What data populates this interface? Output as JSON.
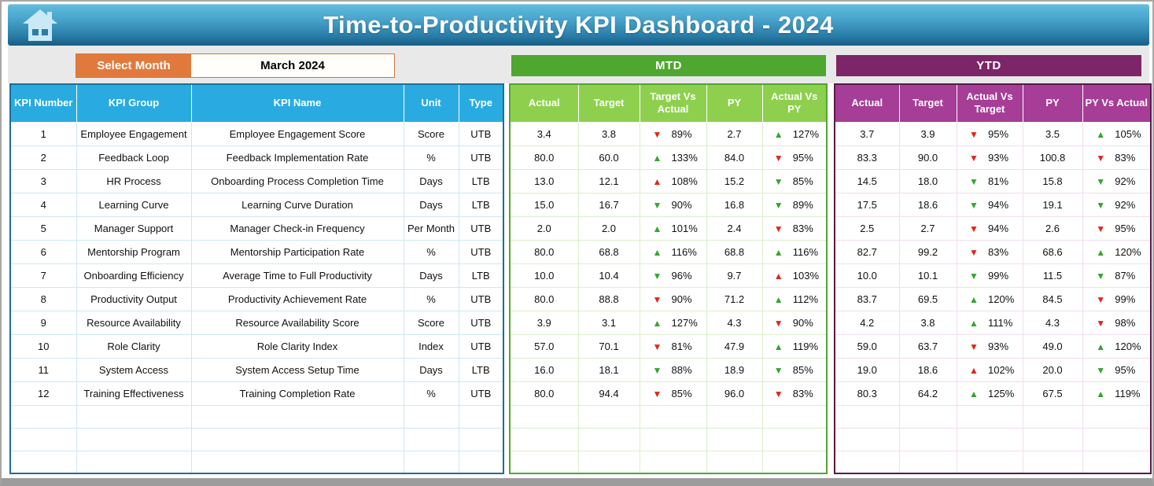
{
  "banner": {
    "title": "Time-to-Productivity KPI Dashboard - 2024"
  },
  "controls": {
    "select_month_label": "Select Month",
    "selected_month": "March 2024"
  },
  "sections": {
    "mtd_label": "MTD",
    "ytd_label": "YTD"
  },
  "colors": {
    "banner_blue_top": "#63bde0",
    "banner_blue_bottom": "#175d84",
    "header_blue": "#29abe2",
    "select_orange": "#e2793c",
    "mtd_band_green": "#4ea72e",
    "mtd_header_green": "#8ed04e",
    "ytd_band_purple": "#7d2569",
    "ytd_header_magenta": "#a63d96",
    "arrow_up_green": "#36a331",
    "arrow_down_red": "#e1251b"
  },
  "table": {
    "info_headers": [
      "KPI Number",
      "KPI Group",
      "KPI Name",
      "Unit",
      "Type"
    ],
    "mtd_headers": [
      "Actual",
      "Target",
      "Target Vs Actual",
      "PY",
      "Actual Vs PY"
    ],
    "ytd_headers": [
      "Actual",
      "Target",
      "Actual Vs Target",
      "PY",
      "PY Vs Actual"
    ],
    "empty_rows": 3,
    "rows": [
      {
        "number": "1",
        "group": "Employee Engagement",
        "name": "Employee Engagement Score",
        "unit": "Score",
        "type": "UTB",
        "mtd": {
          "actual": "3.4",
          "target": "3.8",
          "target_vs_actual": {
            "arrow": "down-red",
            "value": "89%"
          },
          "py": "2.7",
          "actual_vs_py": {
            "arrow": "up-green",
            "value": "127%"
          }
        },
        "ytd": {
          "actual": "3.7",
          "target": "3.9",
          "actual_vs_target": {
            "arrow": "down-red",
            "value": "95%"
          },
          "py": "3.5",
          "py_vs_actual": {
            "arrow": "up-green",
            "value": "105%"
          }
        }
      },
      {
        "number": "2",
        "group": "Feedback Loop",
        "name": "Feedback Implementation Rate",
        "unit": "%",
        "type": "UTB",
        "mtd": {
          "actual": "80.0",
          "target": "60.0",
          "target_vs_actual": {
            "arrow": "up-green",
            "value": "133%"
          },
          "py": "84.0",
          "actual_vs_py": {
            "arrow": "down-red",
            "value": "95%"
          }
        },
        "ytd": {
          "actual": "83.3",
          "target": "90.0",
          "actual_vs_target": {
            "arrow": "down-red",
            "value": "93%"
          },
          "py": "100.8",
          "py_vs_actual": {
            "arrow": "down-red",
            "value": "83%"
          }
        }
      },
      {
        "number": "3",
        "group": "HR Process",
        "name": "Onboarding Process Completion Time",
        "unit": "Days",
        "type": "LTB",
        "mtd": {
          "actual": "13.0",
          "target": "12.1",
          "target_vs_actual": {
            "arrow": "up-red",
            "value": "108%"
          },
          "py": "15.2",
          "actual_vs_py": {
            "arrow": "down-green",
            "value": "85%"
          }
        },
        "ytd": {
          "actual": "14.5",
          "target": "18.0",
          "actual_vs_target": {
            "arrow": "down-green",
            "value": "81%"
          },
          "py": "15.8",
          "py_vs_actual": {
            "arrow": "down-green",
            "value": "92%"
          }
        }
      },
      {
        "number": "4",
        "group": "Learning Curve",
        "name": "Learning Curve Duration",
        "unit": "Days",
        "type": "LTB",
        "mtd": {
          "actual": "15.0",
          "target": "16.7",
          "target_vs_actual": {
            "arrow": "down-green",
            "value": "90%"
          },
          "py": "16.8",
          "actual_vs_py": {
            "arrow": "down-green",
            "value": "89%"
          }
        },
        "ytd": {
          "actual": "17.5",
          "target": "18.6",
          "actual_vs_target": {
            "arrow": "down-green",
            "value": "94%"
          },
          "py": "19.1",
          "py_vs_actual": {
            "arrow": "down-green",
            "value": "92%"
          }
        }
      },
      {
        "number": "5",
        "group": "Manager Support",
        "name": "Manager Check-in Frequency",
        "unit": "Per Month",
        "type": "UTB",
        "mtd": {
          "actual": "2.0",
          "target": "2.0",
          "target_vs_actual": {
            "arrow": "up-green",
            "value": "101%"
          },
          "py": "2.4",
          "actual_vs_py": {
            "arrow": "down-red",
            "value": "83%"
          }
        },
        "ytd": {
          "actual": "2.5",
          "target": "2.7",
          "actual_vs_target": {
            "arrow": "down-red",
            "value": "94%"
          },
          "py": "2.6",
          "py_vs_actual": {
            "arrow": "down-red",
            "value": "95%"
          }
        }
      },
      {
        "number": "6",
        "group": "Mentorship Program",
        "name": "Mentorship Participation Rate",
        "unit": "%",
        "type": "UTB",
        "mtd": {
          "actual": "80.0",
          "target": "68.8",
          "target_vs_actual": {
            "arrow": "up-green",
            "value": "116%"
          },
          "py": "68.8",
          "actual_vs_py": {
            "arrow": "up-green",
            "value": "116%"
          }
        },
        "ytd": {
          "actual": "82.7",
          "target": "99.2",
          "actual_vs_target": {
            "arrow": "down-red",
            "value": "83%"
          },
          "py": "68.6",
          "py_vs_actual": {
            "arrow": "up-green",
            "value": "120%"
          }
        }
      },
      {
        "number": "7",
        "group": "Onboarding Efficiency",
        "name": "Average Time to Full Productivity",
        "unit": "Days",
        "type": "LTB",
        "mtd": {
          "actual": "10.0",
          "target": "10.4",
          "target_vs_actual": {
            "arrow": "down-green",
            "value": "96%"
          },
          "py": "9.7",
          "actual_vs_py": {
            "arrow": "up-red",
            "value": "103%"
          }
        },
        "ytd": {
          "actual": "10.0",
          "target": "10.1",
          "actual_vs_target": {
            "arrow": "down-green",
            "value": "99%"
          },
          "py": "11.5",
          "py_vs_actual": {
            "arrow": "down-green",
            "value": "87%"
          }
        }
      },
      {
        "number": "8",
        "group": "Productivity Output",
        "name": "Productivity Achievement Rate",
        "unit": "%",
        "type": "UTB",
        "mtd": {
          "actual": "80.0",
          "target": "88.8",
          "target_vs_actual": {
            "arrow": "down-red",
            "value": "90%"
          },
          "py": "71.2",
          "actual_vs_py": {
            "arrow": "up-green",
            "value": "112%"
          }
        },
        "ytd": {
          "actual": "83.7",
          "target": "69.5",
          "actual_vs_target": {
            "arrow": "up-green",
            "value": "120%"
          },
          "py": "84.5",
          "py_vs_actual": {
            "arrow": "down-red",
            "value": "99%"
          }
        }
      },
      {
        "number": "9",
        "group": "Resource Availability",
        "name": "Resource Availability Score",
        "unit": "Score",
        "type": "UTB",
        "mtd": {
          "actual": "3.9",
          "target": "3.1",
          "target_vs_actual": {
            "arrow": "up-green",
            "value": "127%"
          },
          "py": "4.3",
          "actual_vs_py": {
            "arrow": "down-red",
            "value": "90%"
          }
        },
        "ytd": {
          "actual": "4.2",
          "target": "3.8",
          "actual_vs_target": {
            "arrow": "up-green",
            "value": "111%"
          },
          "py": "4.3",
          "py_vs_actual": {
            "arrow": "down-red",
            "value": "98%"
          }
        }
      },
      {
        "number": "10",
        "group": "Role Clarity",
        "name": "Role Clarity Index",
        "unit": "Index",
        "type": "UTB",
        "mtd": {
          "actual": "57.0",
          "target": "70.1",
          "target_vs_actual": {
            "arrow": "down-red",
            "value": "81%"
          },
          "py": "47.9",
          "actual_vs_py": {
            "arrow": "up-green",
            "value": "119%"
          }
        },
        "ytd": {
          "actual": "59.0",
          "target": "63.7",
          "actual_vs_target": {
            "arrow": "down-red",
            "value": "93%"
          },
          "py": "49.0",
          "py_vs_actual": {
            "arrow": "up-green",
            "value": "120%"
          }
        }
      },
      {
        "number": "11",
        "group": "System Access",
        "name": "System Access Setup Time",
        "unit": "Days",
        "type": "LTB",
        "mtd": {
          "actual": "16.0",
          "target": "18.1",
          "target_vs_actual": {
            "arrow": "down-green",
            "value": "88%"
          },
          "py": "18.9",
          "actual_vs_py": {
            "arrow": "down-green",
            "value": "85%"
          }
        },
        "ytd": {
          "actual": "19.0",
          "target": "18.6",
          "actual_vs_target": {
            "arrow": "up-red",
            "value": "102%"
          },
          "py": "20.0",
          "py_vs_actual": {
            "arrow": "down-green",
            "value": "95%"
          }
        }
      },
      {
        "number": "12",
        "group": "Training Effectiveness",
        "name": "Training Completion Rate",
        "unit": "%",
        "type": "UTB",
        "mtd": {
          "actual": "80.0",
          "target": "94.4",
          "target_vs_actual": {
            "arrow": "down-red",
            "value": "85%"
          },
          "py": "96.0",
          "actual_vs_py": {
            "arrow": "down-red",
            "value": "83%"
          }
        },
        "ytd": {
          "actual": "80.3",
          "target": "64.2",
          "actual_vs_target": {
            "arrow": "up-green",
            "value": "125%"
          },
          "py": "67.5",
          "py_vs_actual": {
            "arrow": "up-green",
            "value": "119%"
          }
        }
      }
    ]
  }
}
